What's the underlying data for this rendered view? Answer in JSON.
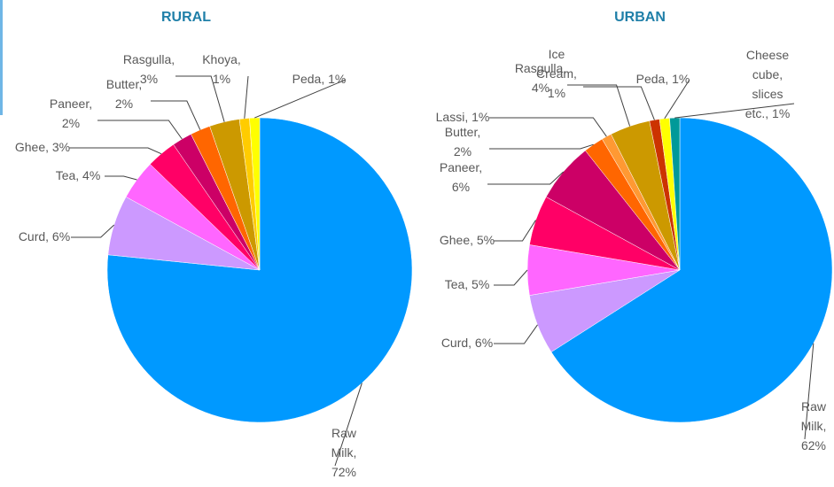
{
  "chart_data": [
    {
      "type": "pie",
      "title": "RURAL",
      "values": [
        72,
        6,
        4,
        3,
        2,
        2,
        3,
        1,
        1
      ],
      "value_labels": [
        "Raw Milk, 72%",
        "Curd, 6%",
        "Tea, 4%",
        "Ghee, 3%",
        "Paneer, 2%",
        "Butter, 2%",
        "Rasgulla, 3%",
        "Khoya, 1%",
        "Peda, 1%"
      ],
      "colors": [
        "#0099ff",
        "#cc99ff",
        "#ff66ff",
        "#ff0066",
        "#cc0066",
        "#ff6600",
        "#cc9900",
        "#ffcc00",
        "#ffff00"
      ]
    },
    {
      "type": "pie",
      "title": "URBAN",
      "values": [
        62,
        6,
        5,
        5,
        6,
        2,
        1,
        4,
        1,
        1,
        1
      ],
      "value_labels": [
        "Raw Milk, 62%",
        "Curd, 6%",
        "Tea, 5%",
        "Ghee, 5%",
        "Paneer, 6%",
        "Butter, 2%",
        "Lassi, 1%",
        "Rasgulla, 4%",
        "Ice Cream, 1%",
        "Peda, 1%",
        "Cheese cube, slices etc., 1%"
      ],
      "colors": [
        "#0099ff",
        "#cc99ff",
        "#ff66ff",
        "#ff0066",
        "#cc0066",
        "#ff6600",
        "#ff9933",
        "#cc9900",
        "#cc3300",
        "#ffff00",
        "#009999"
      ]
    }
  ]
}
